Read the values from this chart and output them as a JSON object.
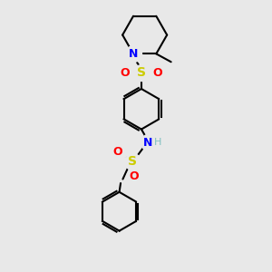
{
  "background_color": "#e8e8e8",
  "bond_color": "#000000",
  "N_color": "#0000ff",
  "S_color": "#cccc00",
  "O_color": "#ff0000",
  "H_color": "#7fbfbf",
  "xlim": [
    0,
    10
  ],
  "ylim": [
    0,
    10
  ],
  "figsize": [
    3.0,
    3.0
  ],
  "dpi": 100
}
